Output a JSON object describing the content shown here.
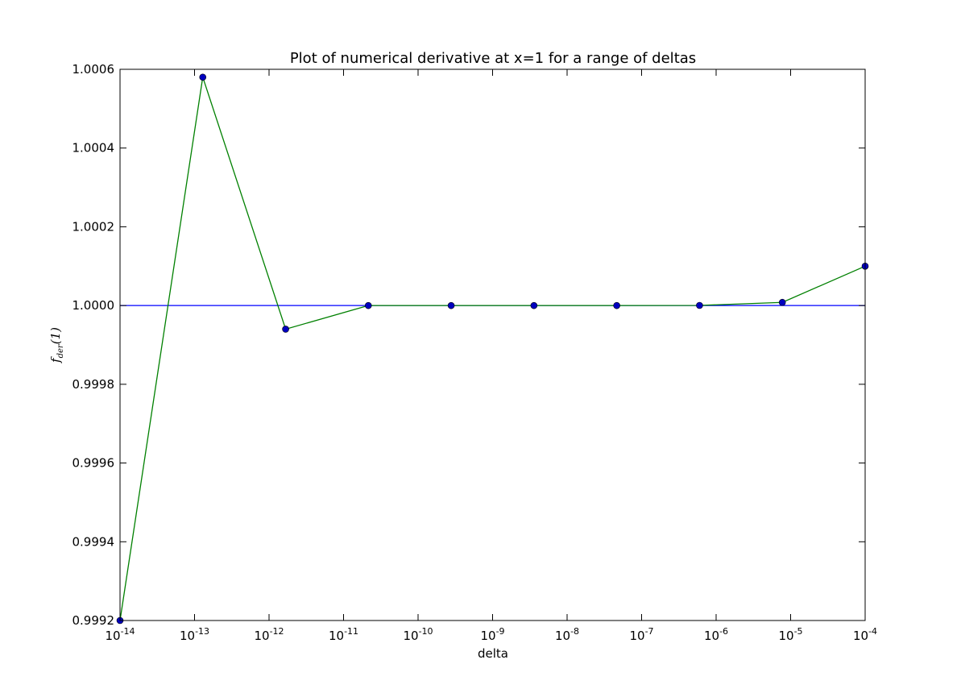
{
  "chart_data": {
    "type": "line",
    "title": "Plot of numerical derivative at x=1 for a range of deltas",
    "xlabel": "delta",
    "ylabel": "f_der(1)",
    "ylabel_parts": {
      "base": "f",
      "sub": "der",
      "arg": "(1)"
    },
    "x_scale": "log",
    "xlim": [
      1e-14,
      0.0001
    ],
    "ylim": [
      0.9992,
      1.0006
    ],
    "grid": false,
    "x_ticks": [
      {
        "mantissa": "10",
        "exponent": "-14"
      },
      {
        "mantissa": "10",
        "exponent": "-13"
      },
      {
        "mantissa": "10",
        "exponent": "-12"
      },
      {
        "mantissa": "10",
        "exponent": "-11"
      },
      {
        "mantissa": "10",
        "exponent": "-10"
      },
      {
        "mantissa": "10",
        "exponent": "-9"
      },
      {
        "mantissa": "10",
        "exponent": "-8"
      },
      {
        "mantissa": "10",
        "exponent": "-7"
      },
      {
        "mantissa": "10",
        "exponent": "-6"
      },
      {
        "mantissa": "10",
        "exponent": "-5"
      },
      {
        "mantissa": "10",
        "exponent": "-4"
      }
    ],
    "y_ticks": [
      "0.9992",
      "0.9994",
      "0.9996",
      "0.9998",
      "1.0000",
      "1.0002",
      "1.0004",
      "1.0006"
    ],
    "series": [
      {
        "color": "#008000",
        "marker": "circle",
        "marker_color": "#0000bf",
        "x": [
          1e-14,
          1.29e-13,
          1.67e-12,
          2.15e-11,
          2.78e-10,
          3.59e-09,
          4.64e-08,
          5.99e-07,
          7.74e-06,
          0.0001
        ],
        "y": [
          0.9992,
          1.00058,
          0.99994,
          1.0,
          1.0,
          1.0,
          1.0,
          1.0000003,
          1.000008,
          1.0001
        ]
      }
    ],
    "reference_line": {
      "y": 1.0,
      "color": "#0000ff"
    }
  }
}
